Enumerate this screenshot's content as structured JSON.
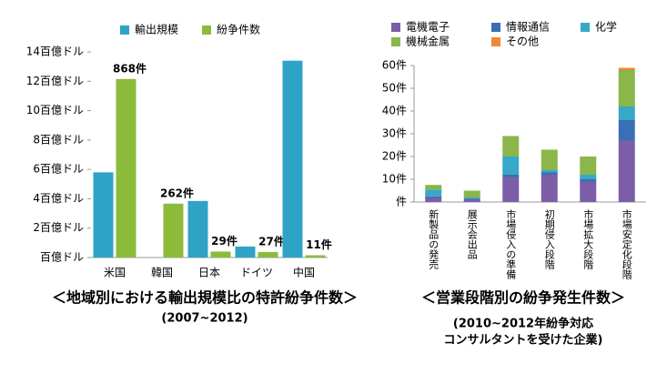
{
  "chart_data": [
    {
      "type": "bar",
      "title": "＜地域別における輸出規模比の特許紛争件数＞",
      "subtitle": "(2007~2012)",
      "categories": [
        "米国",
        "韓国",
        "日本",
        "ドイツ",
        "中国"
      ],
      "series": [
        {
          "name": "輸出規模",
          "color": "#2fa3c6",
          "values": [
            5.8,
            0,
            3.85,
            0.75,
            13.4
          ]
        },
        {
          "name": "紛争件数",
          "color": "#8cbb3c",
          "axis": "y2",
          "values": [
            868,
            262,
            29,
            27,
            11
          ],
          "value_labels": [
            "868件",
            "262件",
            "29件",
            "27件",
            "11件"
          ]
        }
      ],
      "ylim": [
        0,
        14
      ],
      "yticks": [
        {
          "value": 0,
          "label": "百億ドル"
        },
        {
          "value": 2,
          "label": "2百億ドル"
        },
        {
          "value": 4,
          "label": "4百億ドル"
        },
        {
          "value": 6,
          "label": "6百億ドル"
        },
        {
          "value": 8,
          "label": "8百億ドル"
        },
        {
          "value": 10,
          "label": "10百億ドル"
        },
        {
          "value": 12,
          "label": "12百億ドル"
        },
        {
          "value": 14,
          "label": "14百億ドル"
        }
      ],
      "y2lim": [
        0,
        1000
      ],
      "legend": "top"
    },
    {
      "type": "stacked_bar",
      "title": "＜営業段階別の紛争発生件数＞",
      "subtitle": [
        "(2010~2012年紛争対応",
        "コンサルタントを受けた企業)"
      ],
      "categories": [
        "新製品の発売",
        "展示会出品",
        "市場侵入の準備",
        "初期侵入段階",
        "市場拡大段階",
        "市場安定化段階"
      ],
      "series": [
        {
          "name": "電機電子",
          "color": "#7b5ea7",
          "values": [
            2,
            1,
            11,
            12,
            9,
            27
          ]
        },
        {
          "name": "情報通信",
          "color": "#3a6fb5",
          "values": [
            0.5,
            0.5,
            1,
            1,
            1,
            9
          ]
        },
        {
          "name": "化学",
          "color": "#35a9c7",
          "values": [
            3,
            0.5,
            8,
            1,
            2,
            6
          ]
        },
        {
          "name": "機械金属",
          "color": "#8ab64a",
          "values": [
            2,
            3,
            9,
            9,
            8,
            16
          ]
        },
        {
          "name": "その他",
          "color": "#f0883a",
          "values": [
            0,
            0,
            0,
            0,
            0,
            1
          ]
        }
      ],
      "ylim": [
        0,
        60
      ],
      "yticks": [
        {
          "value": 0,
          "label": "件"
        },
        {
          "value": 10,
          "label": "10件"
        },
        {
          "value": 20,
          "label": "20件"
        },
        {
          "value": 30,
          "label": "30件"
        },
        {
          "value": 40,
          "label": "40件"
        },
        {
          "value": 50,
          "label": "50件"
        },
        {
          "value": 60,
          "label": "60件"
        }
      ],
      "legend": "top"
    }
  ]
}
